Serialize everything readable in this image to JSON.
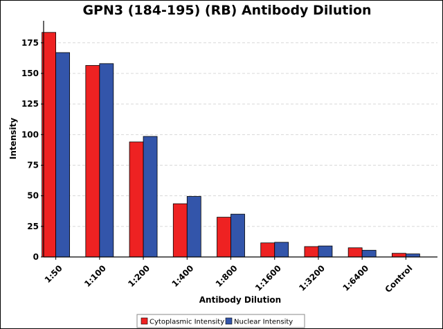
{
  "chart_data": {
    "type": "bar",
    "title": "GPN3 (184-195) (RB) Antibody Dilution",
    "xlabel": "Antibody Dilution",
    "ylabel": "Intensity",
    "categories": [
      "1:50",
      "1:100",
      "1:200",
      "1:400",
      "1:800",
      "1:1600",
      "1:3200",
      "1:6400",
      "Control"
    ],
    "series": [
      {
        "name": "Cytoplasmic Intensity",
        "color": "#ee2222",
        "values": [
          183.5,
          156.5,
          94,
          43.5,
          32.5,
          11.5,
          8.5,
          7.5,
          3
        ]
      },
      {
        "name": "Nuclear Intensity",
        "color": "#3355aa",
        "values": [
          167,
          158,
          98.5,
          49.5,
          35,
          12,
          9,
          5.5,
          2.5
        ]
      }
    ],
    "ylim": [
      0,
      193
    ],
    "yticks": [
      0,
      25,
      50,
      75,
      100,
      125,
      150,
      175
    ],
    "grid": true,
    "legend_position": "bottom-center"
  }
}
